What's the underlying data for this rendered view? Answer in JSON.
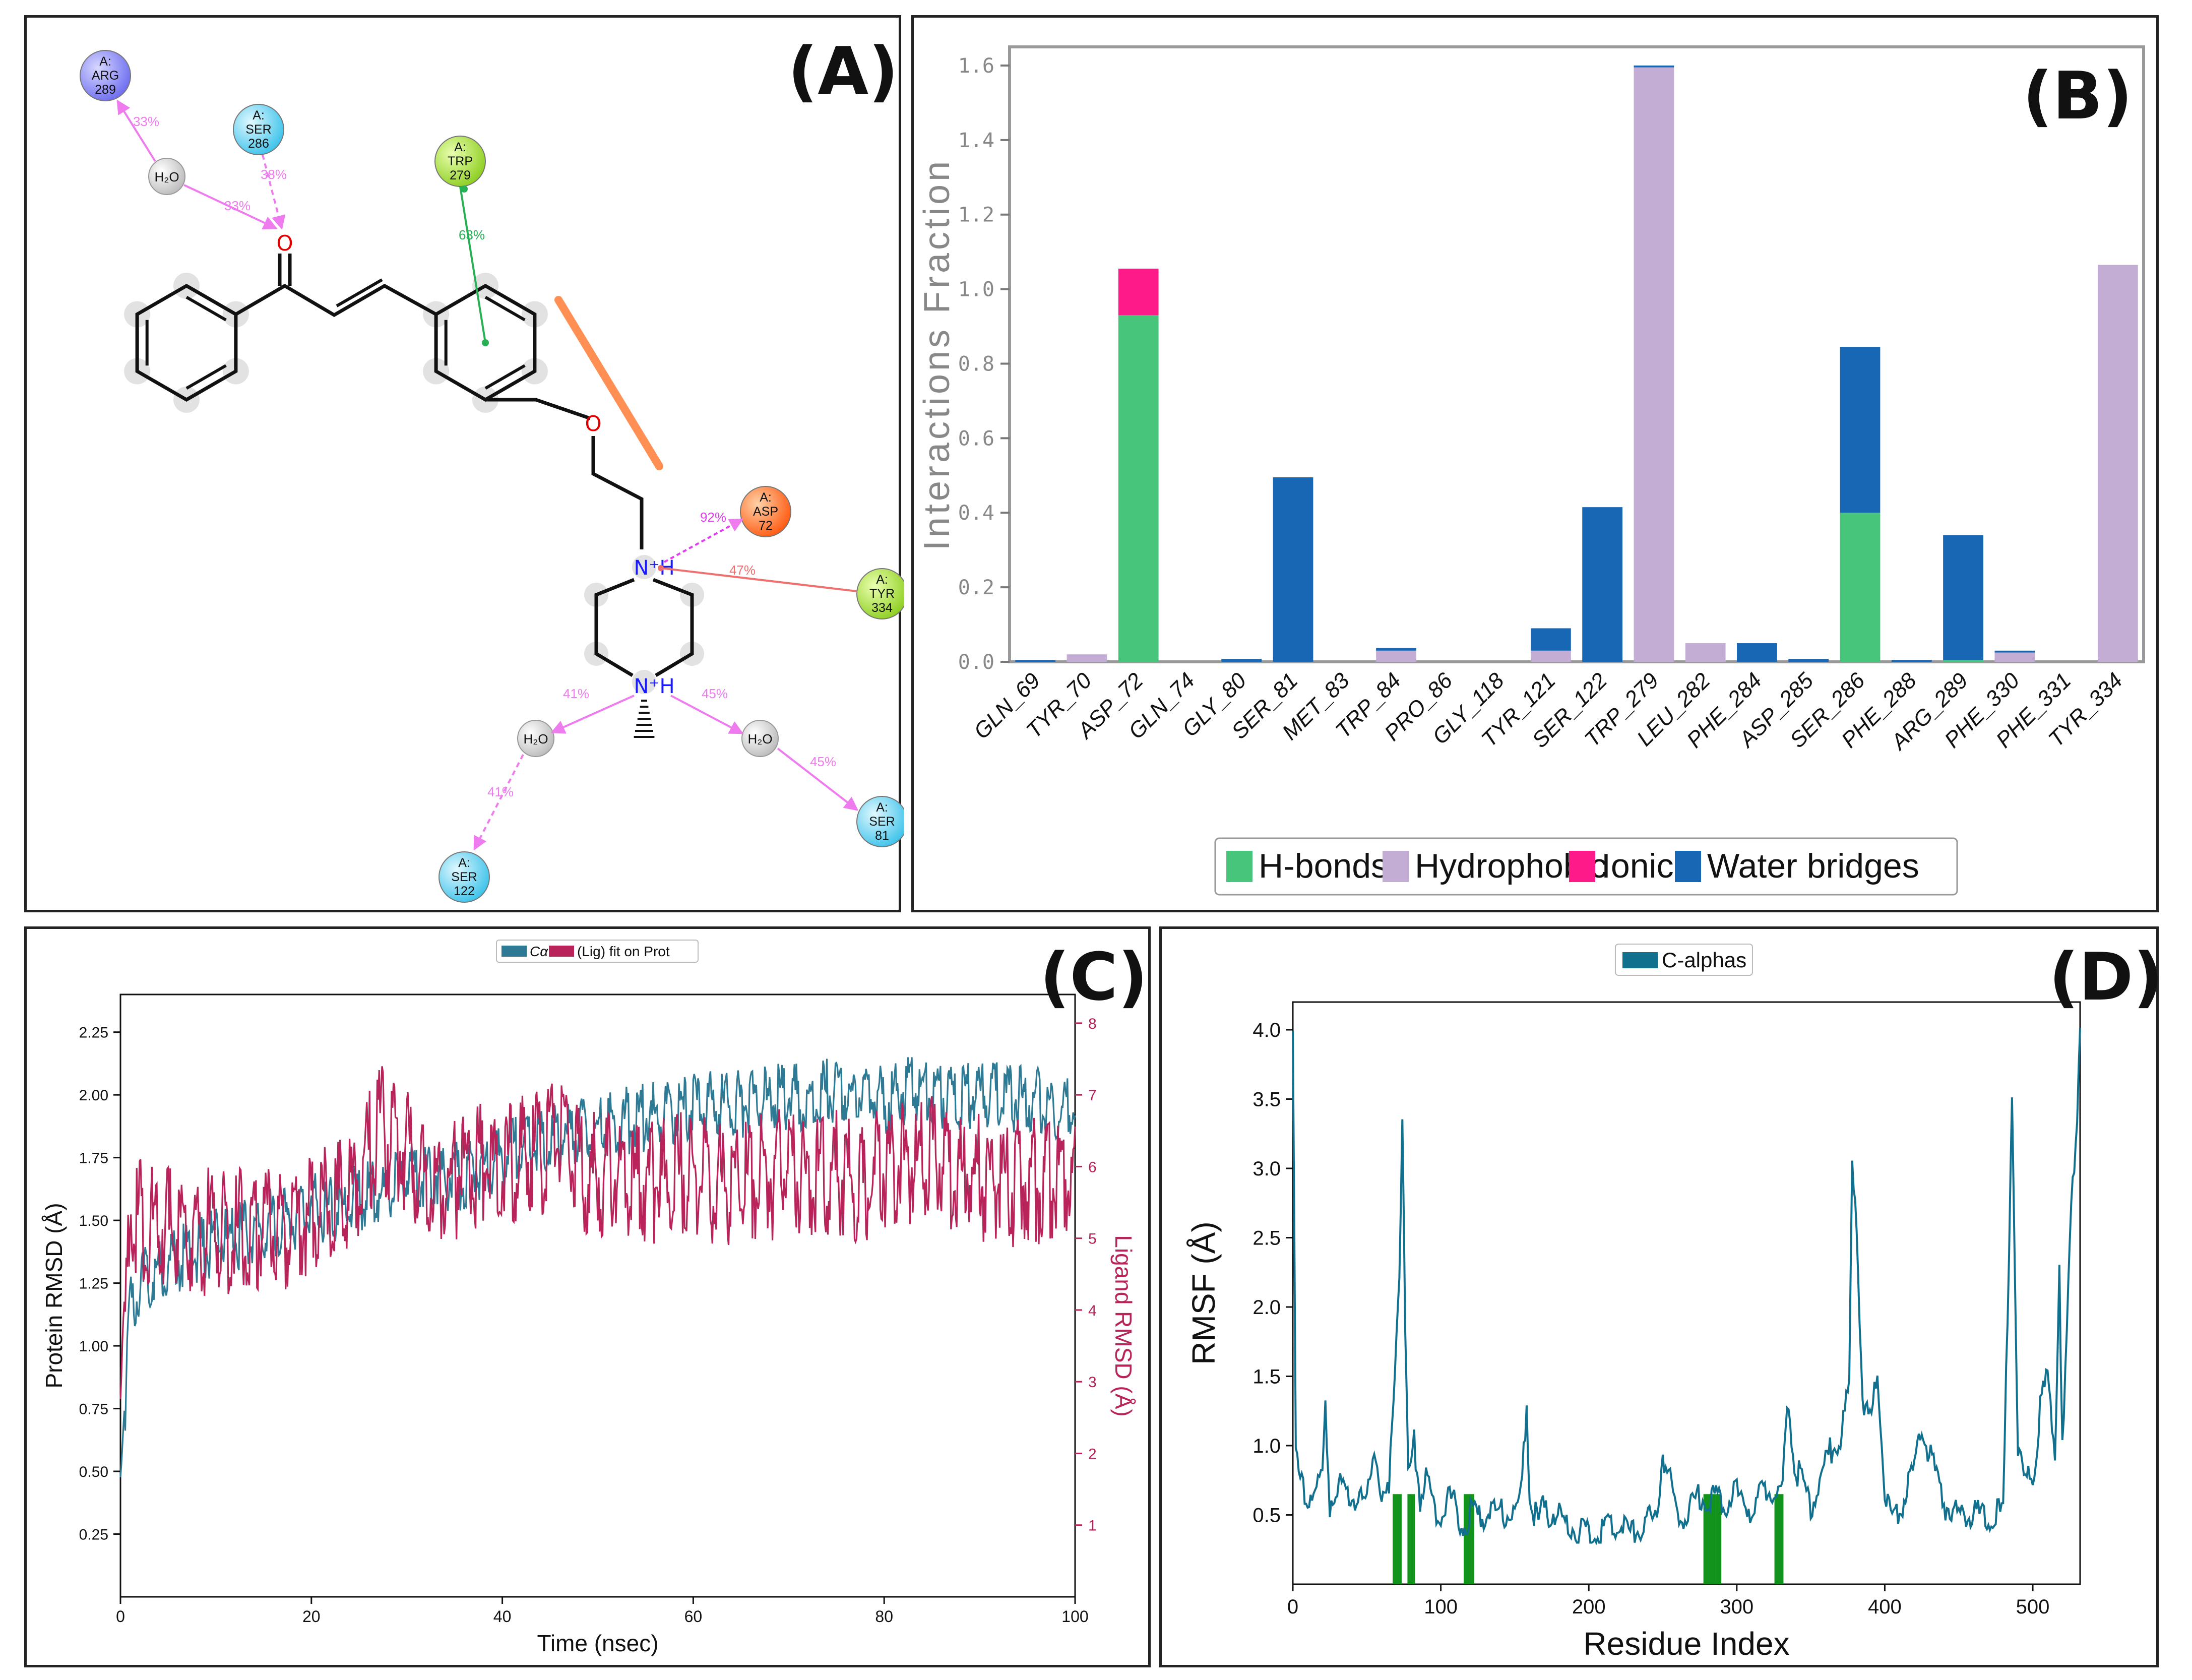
{
  "panel_labels": {
    "a": "(A)",
    "b": "(B)",
    "c": "(C)",
    "d": "(D)"
  },
  "colors": {
    "hbond": "#47c57a",
    "hydrophobic": "#c4add4",
    "ionic": "#ff1a8a",
    "water": "#1767b4",
    "prot": "#2e7a94",
    "lig": "#b8245a",
    "rmsf": "#12708f",
    "contact": "#12931c",
    "hbond_arrow": "#ee7cee",
    "pipi": "#28b055",
    "cation": "#f07070",
    "salt": "#ff6a1a"
  },
  "diagram": {
    "residues": [
      {
        "chain": "A:",
        "name": "ARG",
        "num": "289",
        "kind": "positive"
      },
      {
        "chain": "A:",
        "name": "SER",
        "num": "286",
        "kind": "polar"
      },
      {
        "chain": "A:",
        "name": "TRP",
        "num": "279",
        "kind": "hydrophobic"
      },
      {
        "chain": "A:",
        "name": "ASP",
        "num": "72",
        "kind": "negative"
      },
      {
        "chain": "A:",
        "name": "TYR",
        "num": "334",
        "kind": "hydrophobic"
      },
      {
        "chain": "A:",
        "name": "SER",
        "num": "81",
        "kind": "polar"
      },
      {
        "chain": "A:",
        "name": "SER",
        "num": "122",
        "kind": "polar"
      }
    ],
    "water_label": "H₂O",
    "atoms": {
      "o": "O",
      "nh": "N⁺H"
    },
    "percents": {
      "arg289_water": "33%",
      "water_o": "33%",
      "ser286_o": "38%",
      "trp279": "63%",
      "asp72": "92%",
      "tyr334": "47%",
      "n_water_left": "41%",
      "water_ser122": "41%",
      "n_water_right": "45%",
      "water_ser81": "45%"
    }
  },
  "chart_data": [
    {
      "type": "bar",
      "panel": "B",
      "title": "",
      "xlabel": "",
      "ylabel": "Interactions Fraction",
      "ylim": [
        0,
        1.65
      ],
      "yticks": [
        "0.0",
        "0.2",
        "0.4",
        "0.6",
        "0.8",
        "1.0",
        "1.2",
        "1.4",
        "1.6"
      ],
      "categories": [
        "GLN_69",
        "TYR_70",
        "ASP_72",
        "GLN_74",
        "GLY_80",
        "SER_81",
        "MET_83",
        "TRP_84",
        "PRO_86",
        "GLY_118",
        "TYR_121",
        "SER_122",
        "TRP_279",
        "LEU_282",
        "PHE_284",
        "ASP_285",
        "SER_286",
        "PHE_288",
        "ARG_289",
        "PHE_330",
        "PHE_331",
        "TYR_334"
      ],
      "stacked": true,
      "legend": [
        "H-bonds",
        "Hydrophobic",
        "Ionic",
        "Water bridges"
      ],
      "series": [
        {
          "name": "H-bonds",
          "values": [
            0,
            0,
            0.93,
            0,
            0,
            0,
            0,
            0,
            0,
            0,
            0,
            0,
            0,
            0,
            0,
            0,
            0.4,
            0,
            0.005,
            0,
            0,
            0
          ]
        },
        {
          "name": "Hydrophobic",
          "values": [
            0,
            0.02,
            0,
            0,
            0,
            0,
            0,
            0.03,
            0,
            0,
            0.03,
            0,
            1.595,
            0.05,
            0,
            0,
            0,
            0,
            0,
            0.025,
            0,
            1.065
          ]
        },
        {
          "name": "Ionic",
          "values": [
            0,
            0,
            0.125,
            0,
            0,
            0,
            0,
            0,
            0,
            0,
            0,
            0,
            0,
            0,
            0,
            0,
            0,
            0,
            0,
            0,
            0,
            0
          ]
        },
        {
          "name": "Water bridges",
          "values": [
            0.005,
            0,
            0,
            0,
            0.008,
            0.495,
            0,
            0.007,
            0,
            0,
            0.06,
            0.415,
            0.005,
            0,
            0.05,
            0.008,
            0.445,
            0.005,
            0.335,
            0.005,
            0,
            0
          ]
        }
      ]
    },
    {
      "type": "line",
      "panel": "C",
      "legend": [
        "Cα",
        "(Lig) fit on Prot"
      ],
      "xlabel": "Time (nsec)",
      "ylabel": "Protein RMSD (Å)",
      "y2label": "Ligand RMSD (Å)",
      "xlim": [
        0,
        100
      ],
      "ylim": [
        0,
        2.4
      ],
      "y2lim": [
        0,
        8.4
      ],
      "xticks": [
        "0",
        "20",
        "40",
        "60",
        "80",
        "100"
      ],
      "yticks": [
        "0.25",
        "0.50",
        "0.75",
        "1.00",
        "1.25",
        "1.50",
        "1.75",
        "2.00",
        "2.25"
      ],
      "y2ticks": [
        "1",
        "2",
        "3",
        "4",
        "5",
        "6",
        "7",
        "8"
      ],
      "series": [
        {
          "name": "Protein Cα",
          "axis": "left",
          "time": [
            0,
            1,
            2,
            4,
            6,
            8,
            10,
            12,
            15,
            18,
            20,
            23,
            25,
            28,
            30,
            33,
            35,
            38,
            40,
            43,
            45,
            48,
            50,
            53,
            55,
            58,
            60,
            63,
            65,
            68,
            70,
            73,
            75,
            78,
            80,
            83,
            85,
            88,
            90,
            93,
            95,
            98,
            100
          ],
          "values": [
            0.5,
            1.2,
            1.3,
            1.38,
            1.42,
            1.45,
            1.48,
            1.5,
            1.55,
            1.58,
            1.62,
            1.62,
            1.66,
            1.7,
            1.75,
            1.75,
            1.74,
            1.78,
            1.82,
            1.88,
            1.9,
            1.92,
            1.92,
            1.97,
            1.98,
            2.0,
            2.02,
            2.03,
            2.03,
            2.05,
            2.06,
            2.07,
            2.08,
            2.06,
            2.05,
            2.1,
            2.08,
            2.06,
            2.08,
            2.06,
            2.05,
            2.03,
            2.0
          ]
        },
        {
          "name": "Ligand fit on Prot",
          "axis": "right",
          "time": [
            0,
            1,
            2,
            4,
            6,
            8,
            10,
            12,
            15,
            18,
            20,
            23,
            25,
            27,
            28,
            30,
            33,
            35,
            38,
            40,
            43,
            45,
            46,
            48,
            50,
            53,
            55,
            58,
            60,
            63,
            65,
            68,
            70,
            73,
            75,
            78,
            80,
            83,
            85,
            88,
            90,
            93,
            95,
            98,
            100
          ],
          "values": [
            3.0,
            5.8,
            5.7,
            5.65,
            5.5,
            5.5,
            5.6,
            5.55,
            5.5,
            5.65,
            5.7,
            6.0,
            6.3,
            7.0,
            6.9,
            6.6,
            6.2,
            6.3,
            6.5,
            6.5,
            6.6,
            6.7,
            7.1,
            6.4,
            6.3,
            6.3,
            6.2,
            6.3,
            6.4,
            6.2,
            6.3,
            6.3,
            6.4,
            6.3,
            6.4,
            6.2,
            6.45,
            6.5,
            6.6,
            6.4,
            6.3,
            6.2,
            6.3,
            6.2,
            6.35
          ]
        }
      ]
    },
    {
      "type": "line",
      "panel": "D",
      "legend": [
        "C-alphas"
      ],
      "xlabel": "Residue Index",
      "ylabel": "RMSF (Å)",
      "xlim": [
        0,
        532
      ],
      "ylim": [
        0,
        4.2
      ],
      "xticks": [
        "0",
        "100",
        "200",
        "300",
        "400",
        "500"
      ],
      "yticks": [
        "0.5",
        "1.0",
        "1.5",
        "2.0",
        "2.5",
        "3.0",
        "3.5",
        "4.0"
      ],
      "series": [
        {
          "name": "C-alphas",
          "residue": [
            0,
            2,
            5,
            10,
            15,
            20,
            22,
            25,
            30,
            40,
            50,
            55,
            60,
            65,
            68,
            72,
            74,
            76,
            78,
            82,
            86,
            90,
            95,
            100,
            105,
            110,
            115,
            120,
            125,
            130,
            140,
            150,
            155,
            158,
            160,
            165,
            170,
            180,
            190,
            200,
            210,
            220,
            230,
            240,
            245,
            250,
            260,
            270,
            275,
            280,
            285,
            290,
            300,
            310,
            320,
            330,
            335,
            338,
            340,
            345,
            350,
            355,
            360,
            365,
            370,
            376,
            378,
            380,
            385,
            390,
            395,
            400,
            405,
            410,
            415,
            420,
            425,
            430,
            440,
            450,
            460,
            470,
            480,
            483,
            486,
            490,
            495,
            500,
            505,
            510,
            515,
            518,
            520,
            522,
            525,
            528,
            530,
            532
          ],
          "values": [
            4.1,
            1.0,
            0.8,
            0.72,
            0.75,
            0.8,
            1.35,
            0.65,
            0.75,
            0.7,
            0.6,
            1.1,
            0.62,
            0.7,
            1.4,
            2.3,
            3.45,
            1.8,
            0.8,
            1.1,
            0.7,
            0.8,
            0.65,
            0.55,
            0.72,
            0.6,
            0.45,
            0.6,
            0.5,
            0.55,
            0.6,
            0.55,
            0.75,
            1.4,
            0.7,
            0.5,
            0.6,
            0.55,
            0.45,
            0.4,
            0.45,
            0.5,
            0.42,
            0.55,
            0.5,
            1.0,
            0.55,
            0.6,
            0.7,
            0.65,
            0.7,
            0.65,
            0.7,
            0.6,
            0.75,
            0.65,
            1.4,
            1.05,
            0.9,
            0.75,
            0.6,
            0.8,
            0.95,
            1.05,
            1.1,
            1.5,
            3.05,
            2.95,
            1.4,
            1.2,
            1.6,
            0.7,
            0.55,
            0.6,
            0.75,
            0.9,
            1.2,
            1.0,
            0.65,
            0.55,
            0.6,
            0.5,
            0.6,
            2.0,
            3.6,
            1.0,
            0.8,
            0.85,
            1.3,
            1.6,
            1.0,
            2.4,
            1.0,
            1.5,
            2.5,
            3.1,
            3.5,
            4.1
          ]
        }
      ],
      "contact_residues": [
        68,
        69,
        70,
        71,
        72,
        73,
        78,
        79,
        80,
        81,
        82,
        116,
        117,
        118,
        119,
        120,
        121,
        122,
        278,
        279,
        280,
        281,
        282,
        283,
        284,
        285,
        286,
        287,
        288,
        289,
        326,
        327,
        328,
        329,
        330,
        331
      ]
    }
  ]
}
